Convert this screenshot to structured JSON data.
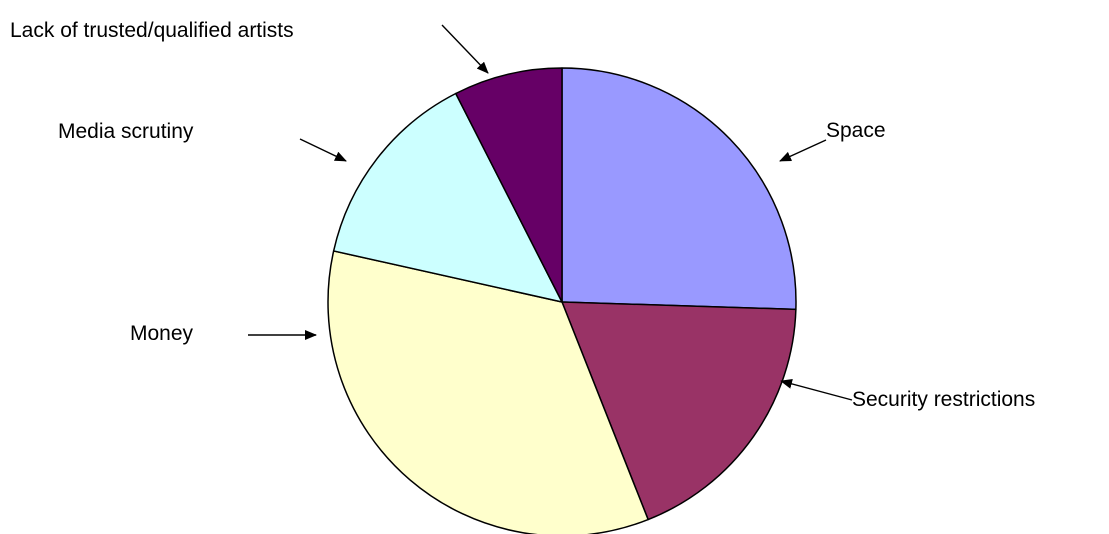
{
  "chart_data": {
    "type": "pie",
    "title": "",
    "legend": "none",
    "slices": [
      {
        "label": "Space",
        "value": 25.5,
        "color": "#9999ff"
      },
      {
        "label": "Security restrictions",
        "value": 18.5,
        "color": "#993366"
      },
      {
        "label": "Money",
        "value": 34.5,
        "color": "#ffffcc"
      },
      {
        "label": "Media scrutiny",
        "value": 14,
        "color": "#ccffff"
      },
      {
        "label": "Lack of trusted/qualified artists",
        "value": 7.5,
        "color": "#660066"
      }
    ]
  }
}
